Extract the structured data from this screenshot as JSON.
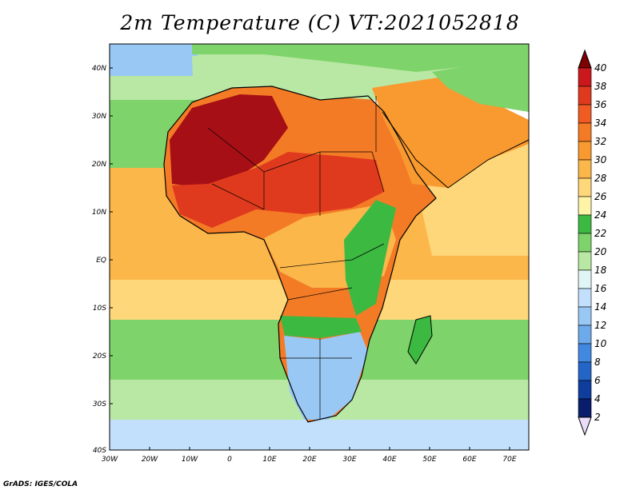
{
  "title": "2m Temperature (C) VT:2021052818",
  "footer": "GrADS: IGES/COLA",
  "axes": {
    "x_ticks": [
      "30W",
      "20W",
      "10W",
      "0",
      "10E",
      "20E",
      "30E",
      "40E",
      "50E",
      "60E",
      "70E"
    ],
    "y_ticks": [
      "40N",
      "30N",
      "20N",
      "10N",
      "EQ",
      "10S",
      "20S",
      "30S",
      "40S"
    ]
  },
  "colorbar": {
    "labels": [
      "40",
      "38",
      "36",
      "34",
      "32",
      "30",
      "28",
      "26",
      "24",
      "22",
      "20",
      "18",
      "16",
      "14",
      "12",
      "10",
      "8",
      "6",
      "4",
      "2"
    ],
    "colors": [
      "#a50f15",
      "#cb181d",
      "#e03a1e",
      "#ef5b23",
      "#f47b26",
      "#f89a30",
      "#fbb74a",
      "#fdd77a",
      "#fff3a8",
      "#3cb941",
      "#7ed36a",
      "#b8e8a4",
      "#e0f6f6",
      "#c2e0fb",
      "#99c8f4",
      "#6daaec",
      "#4189e0",
      "#2366c7",
      "#0f3d9e",
      "#0a1c6c"
    ],
    "top_arrow_color": "#7f0000",
    "bottom_arrow_color": "#e9ddf7"
  },
  "map_colors": {
    "ocean_south_cool": "#b8e8a4",
    "ocean_south_cold": "#c2e0fb",
    "ocean_mid": "#7ed36a",
    "ocean_tropical": "#fbb74a",
    "ocean_warm": "#fdd77a",
    "atlantic_north": "#99c8f4",
    "mediterranean": "#b8e8a4",
    "sahara_hot": "#a50f15",
    "sahel": "#e03a1e",
    "land_warm": "#f47b26",
    "equatorial": "#fbb74a",
    "highlands": "#3cb941",
    "southern_africa": "#99c8f4",
    "arabia": "#f89a30",
    "iran_mountains": "#7ed36a"
  }
}
